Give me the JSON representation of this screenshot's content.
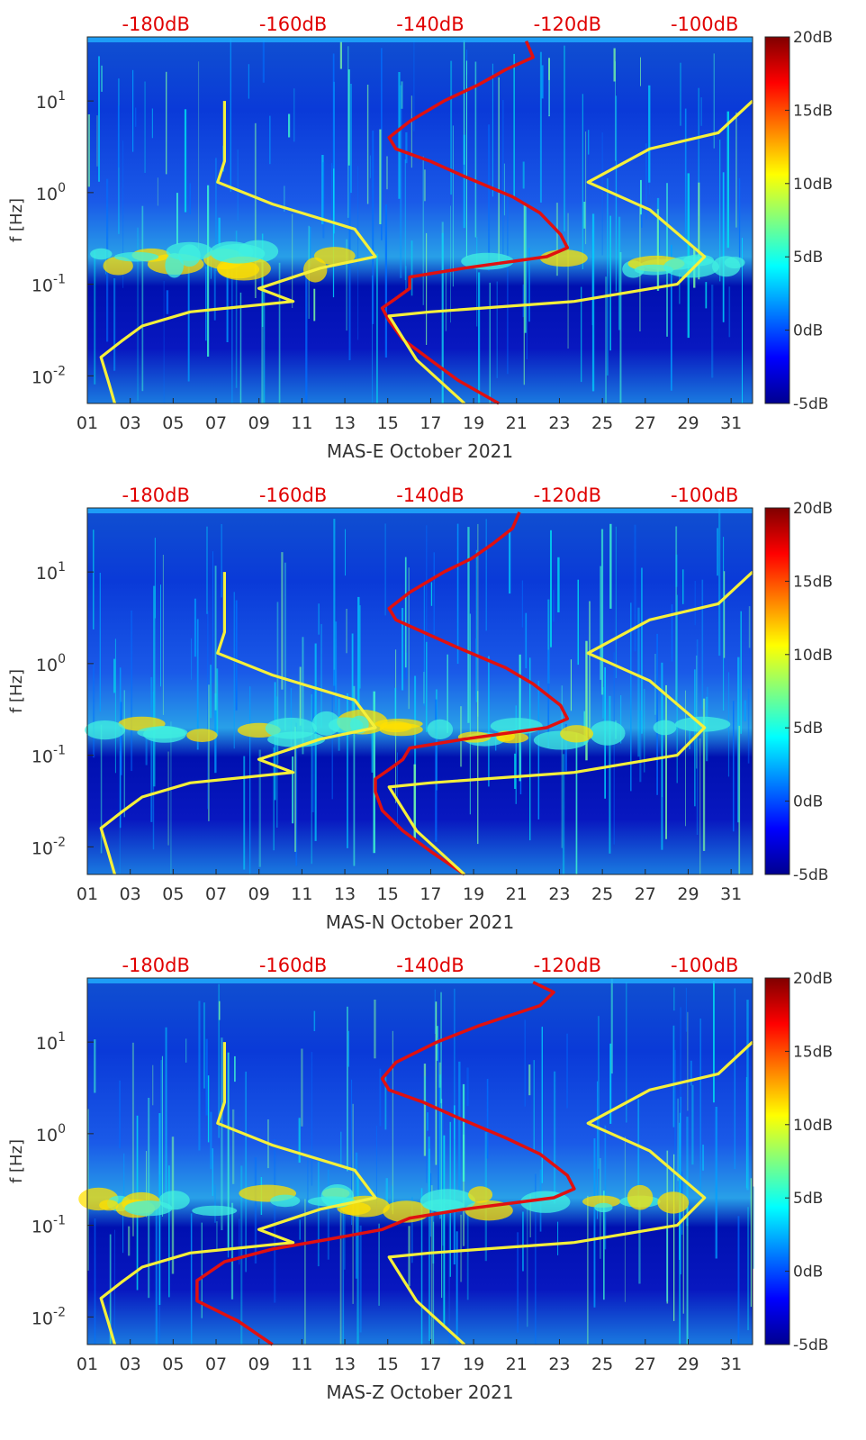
{
  "chart_data": [
    {
      "type": "heatmap",
      "title": "",
      "xlabel": "MAS-E October 2021",
      "ylabel": "f [Hz]",
      "x_ticks": [
        "01",
        "03",
        "05",
        "07",
        "09",
        "11",
        "13",
        "15",
        "17",
        "19",
        "21",
        "23",
        "25",
        "27",
        "29",
        "31"
      ],
      "y_ticks": [
        "10^-2",
        "10^-1",
        "10^0",
        "10^1"
      ],
      "y_ticks_display": [
        {
          "base": "10",
          "exp": "-2"
        },
        {
          "base": "10",
          "exp": "-1"
        },
        {
          "base": "10",
          "exp": "0"
        },
        {
          "base": "10",
          "exp": "1"
        }
      ],
      "ylim_hz": [
        0.005,
        50
      ],
      "xlim_day": [
        1,
        32
      ],
      "top_axis_ticks": [
        "-180dB",
        "-160dB",
        "-140dB",
        "-120dB",
        "-100dB"
      ],
      "top_axis_range_db": [
        -190,
        -93
      ],
      "colorbar": {
        "ticks": [
          "20dB",
          "15dB",
          "10dB",
          "5dB",
          "0dB",
          "-5dB"
        ],
        "range_db": [
          -5,
          20
        ],
        "colormap": "jet"
      },
      "series": [
        {
          "name": "median noise (red)",
          "color": "#e01010",
          "f_hz": [
            45,
            30,
            22,
            15,
            10,
            6,
            4,
            3,
            2.2,
            1.5,
            0.9,
            0.6,
            0.35,
            0.25,
            0.2,
            0.15,
            0.12,
            0.09,
            0.07,
            0.055,
            0.04,
            0.025,
            0.015,
            0.009,
            0.005
          ],
          "db": [
            -126,
            -125,
            -129,
            -133,
            -138,
            -143,
            -146,
            -145,
            -140,
            -135,
            -128,
            -124,
            -121,
            -120,
            -123,
            -135,
            -143,
            -143,
            -145,
            -147,
            -146,
            -144,
            -140,
            -136,
            -130
          ]
        },
        {
          "name": "model low (yellow)",
          "color": "#f5f03a",
          "f_hz": [
            10,
            2.2,
            1.3,
            0.75,
            0.4,
            0.2,
            0.15,
            0.09,
            0.065,
            0.05,
            0.035,
            0.024,
            0.016,
            0.009,
            0.005
          ],
          "db": [
            -170,
            -170,
            -171,
            -163,
            -151,
            -148,
            -156,
            -165,
            -160,
            -175,
            -182,
            -185,
            -188,
            -187,
            -186
          ]
        },
        {
          "name": "model high (yellow)",
          "color": "#f5f03a",
          "f_hz": [
            10,
            4.5,
            3,
            1.3,
            0.65,
            0.2,
            0.1,
            0.065,
            0.05,
            0.045,
            0.015,
            0.005
          ],
          "db": [
            -93,
            -98,
            -108,
            -117,
            -108,
            -100,
            -104,
            -119,
            -140,
            -146,
            -142,
            -135
          ]
        }
      ]
    },
    {
      "type": "heatmap",
      "title": "",
      "xlabel": "MAS-N October 2021",
      "ylabel": "f [Hz]",
      "x_ticks": [
        "01",
        "03",
        "05",
        "07",
        "09",
        "11",
        "13",
        "15",
        "17",
        "19",
        "21",
        "23",
        "25",
        "27",
        "29",
        "31"
      ],
      "y_ticks": [
        "10^-2",
        "10^-1",
        "10^0",
        "10^1"
      ],
      "y_ticks_display": [
        {
          "base": "10",
          "exp": "-2"
        },
        {
          "base": "10",
          "exp": "-1"
        },
        {
          "base": "10",
          "exp": "0"
        },
        {
          "base": "10",
          "exp": "1"
        }
      ],
      "ylim_hz": [
        0.005,
        50
      ],
      "xlim_day": [
        1,
        32
      ],
      "top_axis_ticks": [
        "-180dB",
        "-160dB",
        "-140dB",
        "-120dB",
        "-100dB"
      ],
      "top_axis_range_db": [
        -190,
        -93
      ],
      "colorbar": {
        "ticks": [
          "20dB",
          "15dB",
          "10dB",
          "5dB",
          "0dB",
          "-5dB"
        ],
        "range_db": [
          -5,
          20
        ],
        "colormap": "jet"
      },
      "series": [
        {
          "name": "median noise (red)",
          "color": "#e01010",
          "f_hz": [
            45,
            30,
            20,
            14,
            10,
            6,
            4,
            3,
            2.2,
            1.5,
            0.9,
            0.6,
            0.35,
            0.25,
            0.2,
            0.15,
            0.12,
            0.09,
            0.07,
            0.055,
            0.04,
            0.025,
            0.015,
            0.009,
            0.005
          ],
          "db": [
            -127,
            -128,
            -131,
            -134,
            -138,
            -143,
            -146,
            -145,
            -141,
            -136,
            -129,
            -125,
            -121,
            -120,
            -123,
            -135,
            -143,
            -144,
            -146,
            -148,
            -148,
            -147,
            -144,
            -140,
            -135
          ]
        },
        {
          "name": "model low (yellow)",
          "color": "#f5f03a",
          "f_hz": [
            10,
            2.2,
            1.3,
            0.75,
            0.4,
            0.2,
            0.15,
            0.09,
            0.065,
            0.05,
            0.035,
            0.024,
            0.016,
            0.009,
            0.005
          ],
          "db": [
            -170,
            -170,
            -171,
            -163,
            -151,
            -148,
            -156,
            -165,
            -160,
            -175,
            -182,
            -185,
            -188,
            -187,
            -186
          ]
        },
        {
          "name": "model high (yellow)",
          "color": "#f5f03a",
          "f_hz": [
            10,
            4.5,
            3,
            1.3,
            0.65,
            0.2,
            0.1,
            0.065,
            0.05,
            0.045,
            0.015,
            0.005
          ],
          "db": [
            -93,
            -98,
            -108,
            -117,
            -108,
            -100,
            -104,
            -119,
            -140,
            -146,
            -142,
            -135
          ]
        }
      ]
    },
    {
      "type": "heatmap",
      "title": "",
      "xlabel": "MAS-Z October 2021",
      "ylabel": "f [Hz]",
      "x_ticks": [
        "01",
        "03",
        "05",
        "07",
        "09",
        "11",
        "13",
        "15",
        "17",
        "19",
        "21",
        "23",
        "25",
        "27",
        "29",
        "31"
      ],
      "y_ticks": [
        "10^-2",
        "10^-1",
        "10^0",
        "10^1"
      ],
      "y_ticks_display": [
        {
          "base": "10",
          "exp": "-2"
        },
        {
          "base": "10",
          "exp": "-1"
        },
        {
          "base": "10",
          "exp": "0"
        },
        {
          "base": "10",
          "exp": "1"
        }
      ],
      "ylim_hz": [
        0.005,
        50
      ],
      "xlim_day": [
        1,
        32
      ],
      "top_axis_ticks": [
        "-180dB",
        "-160dB",
        "-140dB",
        "-120dB",
        "-100dB"
      ],
      "top_axis_range_db": [
        -190,
        -93
      ],
      "colorbar": {
        "ticks": [
          "20dB",
          "15dB",
          "10dB",
          "5dB",
          "0dB",
          "-5dB"
        ],
        "range_db": [
          -5,
          20
        ],
        "colormap": "jet"
      },
      "series": [
        {
          "name": "median noise (red)",
          "color": "#e01010",
          "f_hz": [
            45,
            35,
            25,
            15,
            10,
            6,
            4,
            3,
            2.2,
            1.5,
            0.9,
            0.6,
            0.35,
            0.25,
            0.2,
            0.15,
            0.12,
            0.09,
            0.07,
            0.055,
            0.04,
            0.025,
            0.015,
            0.009,
            0.005
          ],
          "db": [
            -125,
            -122,
            -124,
            -133,
            -139,
            -145,
            -147,
            -146,
            -141,
            -136,
            -129,
            -124,
            -120,
            -119,
            -122,
            -135,
            -143,
            -147,
            -155,
            -163,
            -170,
            -174,
            -174,
            -168,
            -163
          ]
        },
        {
          "name": "model low (yellow)",
          "color": "#f5f03a",
          "f_hz": [
            10,
            2.2,
            1.3,
            0.75,
            0.4,
            0.2,
            0.15,
            0.09,
            0.065,
            0.05,
            0.035,
            0.024,
            0.016,
            0.009,
            0.005
          ],
          "db": [
            -170,
            -170,
            -171,
            -163,
            -151,
            -148,
            -156,
            -165,
            -160,
            -175,
            -182,
            -185,
            -188,
            -187,
            -186
          ]
        },
        {
          "name": "model high (yellow)",
          "color": "#f5f03a",
          "f_hz": [
            10,
            4.5,
            3,
            1.3,
            0.65,
            0.2,
            0.1,
            0.065,
            0.05,
            0.045,
            0.015,
            0.005
          ],
          "db": [
            -93,
            -98,
            -108,
            -117,
            -108,
            -100,
            -104,
            -119,
            -140,
            -146,
            -142,
            -135
          ]
        }
      ]
    }
  ]
}
